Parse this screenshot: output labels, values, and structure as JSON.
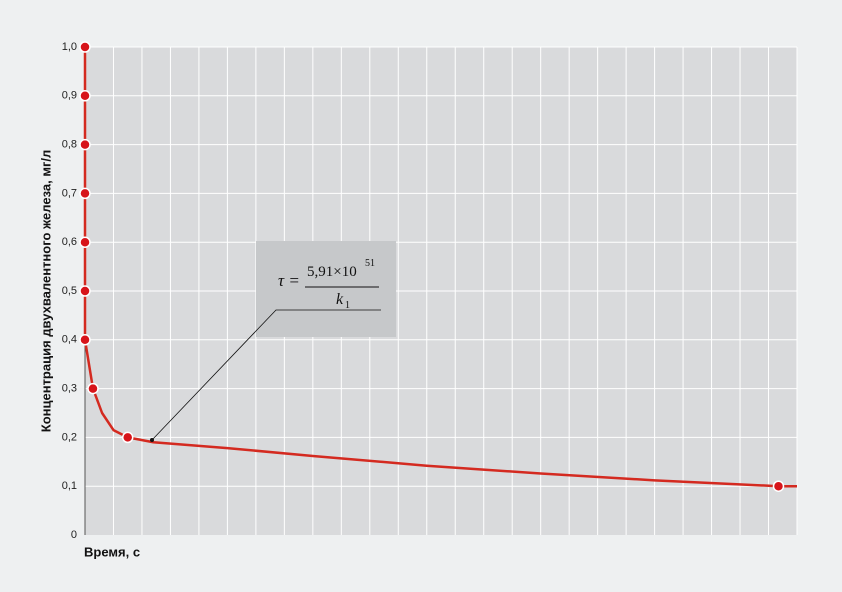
{
  "chart_data": {
    "type": "line",
    "ylabel": "Концентрация двухвалентного железа, мг/л",
    "xlabel": "Время, с",
    "xlim": [
      0,
      25
    ],
    "ylim": [
      0,
      1
    ],
    "yticks": [
      0,
      {
        "value": 0.1,
        "label": "0,1"
      },
      {
        "value": 0.2,
        "label": "0,2"
      },
      {
        "value": 0.3,
        "label": "0,3"
      },
      {
        "value": 0.4,
        "label": "0,4"
      },
      {
        "value": 0.5,
        "label": "0,5"
      },
      {
        "value": 0.6,
        "label": "0,6"
      },
      {
        "value": 0.7,
        "label": "0,7"
      },
      {
        "value": 0.8,
        "label": "0,8"
      },
      {
        "value": 0.9,
        "label": "0,9"
      },
      {
        "value": 1.0,
        "label": "1,0"
      }
    ],
    "grid": true,
    "line": {
      "color": "#d42a20",
      "x": [
        0,
        0,
        0.28,
        0.6,
        1.0,
        1.5,
        2.4,
        5,
        8,
        12,
        16,
        20,
        24.35,
        25
      ],
      "values": [
        1.0,
        0.4,
        0.3,
        0.25,
        0.215,
        0.2,
        0.19,
        0.178,
        0.162,
        0.142,
        0.126,
        0.112,
        0.1,
        0.1
      ]
    },
    "points": {
      "color": "#d7141a",
      "x": [
        0,
        0,
        0,
        0,
        0,
        0,
        0,
        0.28,
        1.5,
        24.35
      ],
      "values": [
        1.0,
        0.9,
        0.8,
        0.7,
        0.6,
        0.5,
        0.4,
        0.3,
        0.2,
        0.1
      ]
    },
    "annotation": {
      "lhs": "τ =",
      "numerator": "5,91×10",
      "exponent": "51",
      "denominator": "k",
      "subscript": "1"
    }
  }
}
